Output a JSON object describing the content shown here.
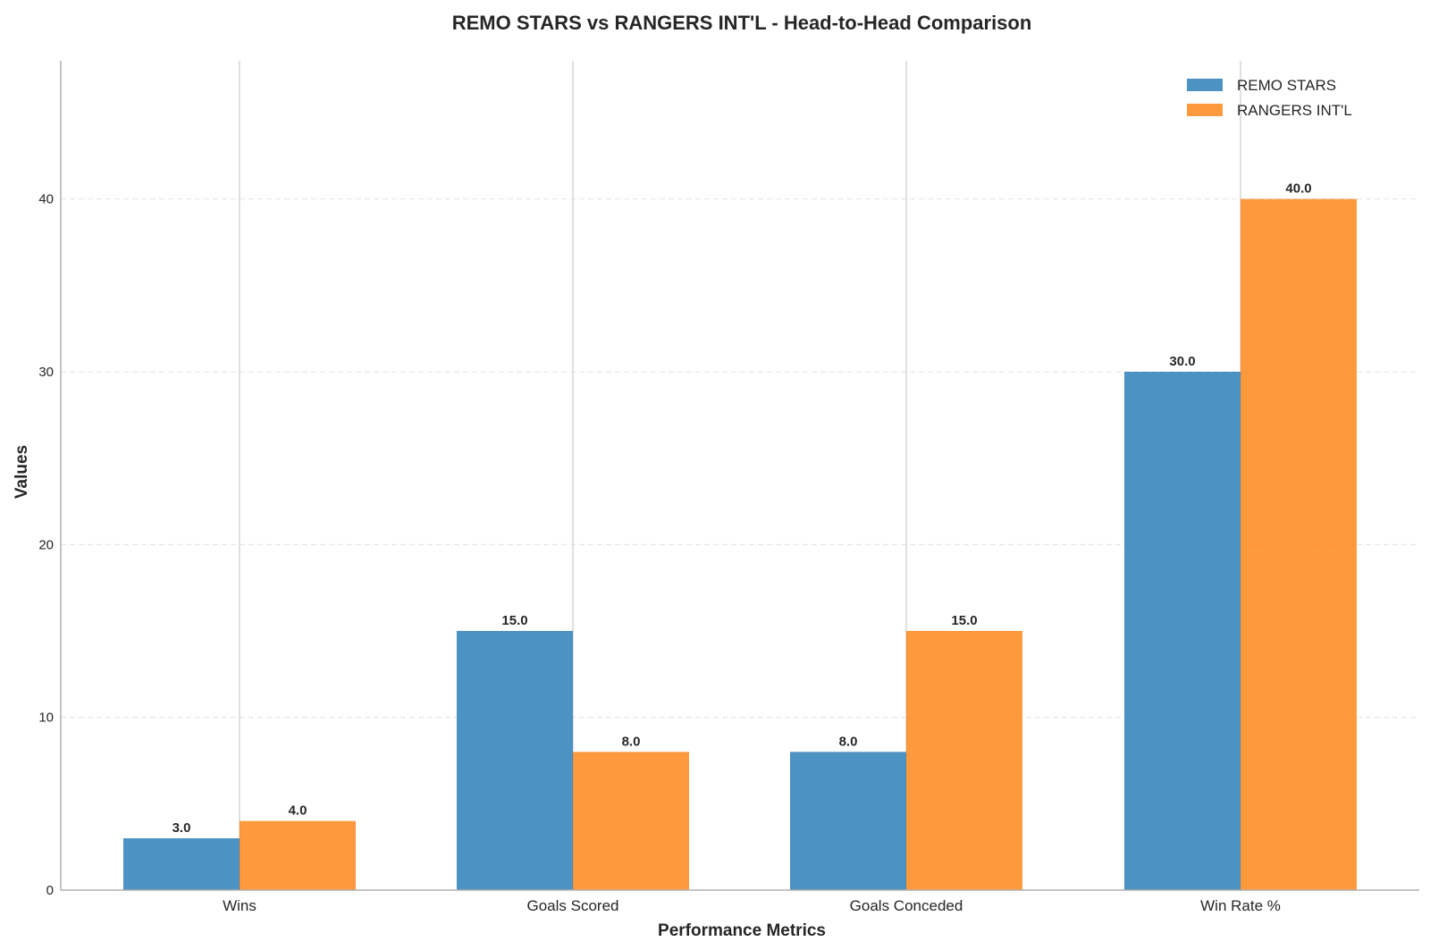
{
  "chart_data": {
    "type": "bar",
    "title": "REMO STARS vs RANGERS INT'L - Head-to-Head Comparison",
    "xlabel": "Performance Metrics",
    "ylabel": "Values",
    "categories": [
      "Wins",
      "Goals Scored",
      "Goals Conceded",
      "Win Rate %"
    ],
    "series": [
      {
        "name": "REMO STARS",
        "color": "#1f77b4",
        "values": [
          3.0,
          15.0,
          8.0,
          30.0
        ],
        "labels": [
          "3.0",
          "15.0",
          "8.0",
          "30.0"
        ]
      },
      {
        "name": "RANGERS INT'L",
        "color": "#ff7f0e",
        "values": [
          4.0,
          8.0,
          15.0,
          40.0
        ],
        "labels": [
          "4.0",
          "8.0",
          "15.0",
          "40.0"
        ]
      }
    ],
    "ylim": [
      0,
      48
    ],
    "yticks": [
      0,
      10,
      20,
      30,
      40
    ],
    "ytick_labels": [
      "0",
      "10",
      "20",
      "30",
      "40"
    ],
    "grid": "y dashed",
    "legend_position": "top-right"
  }
}
